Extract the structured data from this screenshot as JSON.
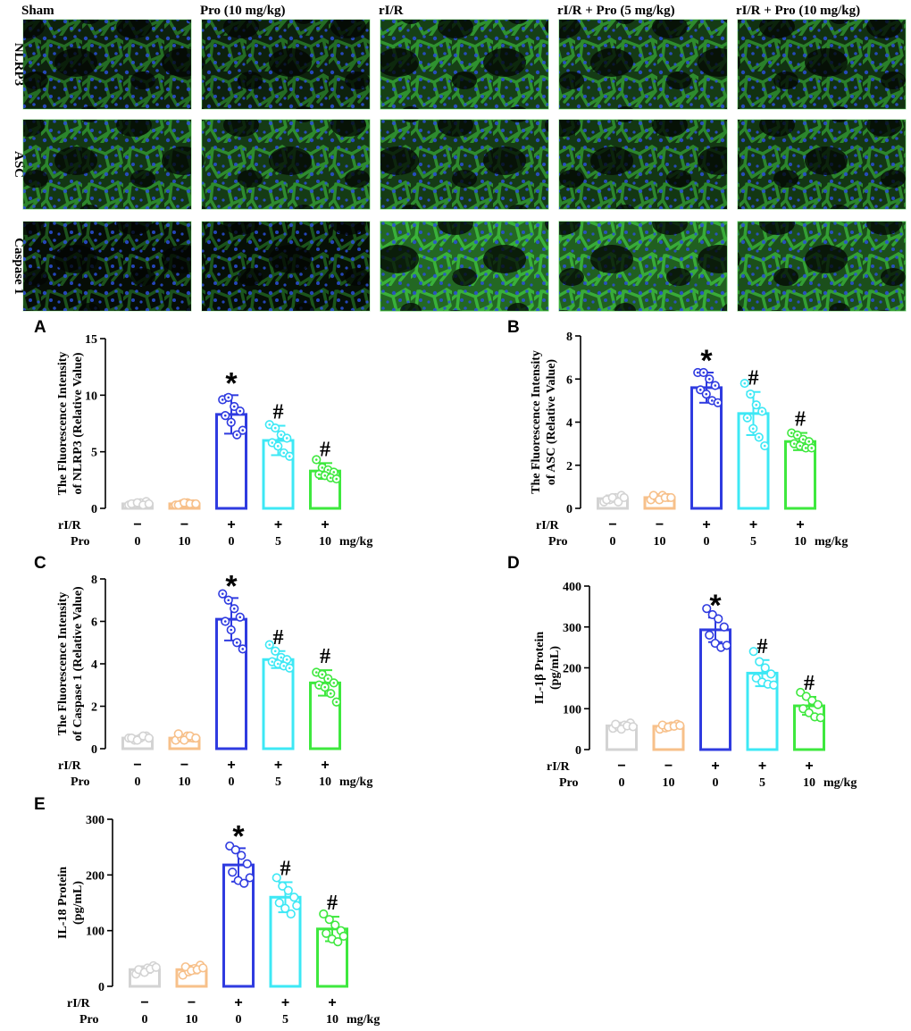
{
  "micrographs": {
    "columns": [
      "Sham",
      "Pro (10 mg/kg)",
      "rI/R",
      "rI/R + Pro (5 mg/kg)",
      "rI/R + Pro (10 mg/kg)"
    ],
    "rows": [
      "NLRP3",
      "ASC",
      "Caspase 1"
    ],
    "intensity": [
      [
        0.25,
        0.25,
        0.55,
        0.5,
        0.4
      ],
      [
        0.45,
        0.5,
        0.5,
        0.45,
        0.45
      ],
      [
        0.05,
        0.08,
        0.95,
        0.85,
        0.7
      ]
    ],
    "colors": {
      "membrane": "#3fc23f",
      "nucleus": "#2a4fd8",
      "background": "#050805"
    }
  },
  "groups": {
    "row_labels": [
      "rI/R",
      "Pro"
    ],
    "rIR": [
      "−",
      "−",
      "+",
      "+",
      "+"
    ],
    "pro": [
      "0",
      "10",
      "0",
      "5",
      "10"
    ],
    "unit": "mg/kg",
    "colors": [
      "#d3d3d3",
      "#f7c08a",
      "#2f3be0",
      "#3de8f5",
      "#3ee83e"
    ]
  },
  "chart_data": [
    {
      "type": "bar",
      "panel": "A",
      "ylabel": [
        "The Fluorescence Intensity",
        "of NLRP3 (Relative Value)"
      ],
      "ylim": [
        0,
        15
      ],
      "yticks": [
        0,
        5,
        10,
        15
      ],
      "values": [
        0.4,
        0.4,
        8.3,
        6.0,
        3.3
      ],
      "errors": [
        0.15,
        0.15,
        1.7,
        1.3,
        0.7
      ],
      "annotations": [
        "",
        "",
        "*",
        "#",
        "#"
      ],
      "points": [
        [
          0.3,
          0.4,
          0.5,
          0.6,
          0.4,
          0.5,
          0.3,
          0.4
        ],
        [
          0.3,
          0.4,
          0.5,
          0.4,
          0.3,
          0.5,
          0.4,
          0.4
        ],
        [
          9.6,
          9.8,
          9.0,
          8.6,
          8.2,
          7.6,
          6.5,
          6.9
        ],
        [
          7.4,
          7.1,
          6.5,
          6.2,
          5.8,
          5.5,
          4.9,
          4.6
        ],
        [
          4.3,
          3.6,
          3.4,
          3.2,
          3.0,
          2.9,
          2.7,
          2.6
        ]
      ]
    },
    {
      "type": "bar",
      "panel": "B",
      "ylabel": [
        "The Fluorescence Intensity",
        "of ASC (Relative Value)"
      ],
      "ylim": [
        0,
        8
      ],
      "yticks": [
        0,
        2,
        4,
        6,
        8
      ],
      "values": [
        0.45,
        0.5,
        5.6,
        4.4,
        3.1
      ],
      "errors": [
        0.15,
        0.12,
        0.7,
        1.0,
        0.4
      ],
      "annotations": [
        "",
        "",
        "*",
        "#",
        "#"
      ],
      "points": [
        [
          0.3,
          0.4,
          0.5,
          0.6,
          0.4,
          0.5,
          0.3,
          0.5
        ],
        [
          0.4,
          0.5,
          0.6,
          0.5,
          0.6,
          0.4,
          0.5,
          0.5
        ],
        [
          6.3,
          6.3,
          6.0,
          5.7,
          5.5,
          5.3,
          5.0,
          4.9
        ],
        [
          5.8,
          5.3,
          4.8,
          4.5,
          4.2,
          3.7,
          3.3,
          2.9
        ],
        [
          3.5,
          3.4,
          3.2,
          3.1,
          3.0,
          2.9,
          2.8,
          2.8
        ]
      ]
    },
    {
      "type": "bar",
      "panel": "C",
      "ylabel": [
        "The Fluorescence Intensity",
        "of Caspase 1 (Relative Value)"
      ],
      "ylim": [
        0,
        8
      ],
      "yticks": [
        0,
        2,
        4,
        6,
        8
      ],
      "values": [
        0.5,
        0.5,
        6.1,
        4.2,
        3.1
      ],
      "errors": [
        0.1,
        0.15,
        1.0,
        0.4,
        0.6
      ],
      "annotations": [
        "",
        "",
        "*",
        "#",
        "#"
      ],
      "points": [
        [
          0.5,
          0.4,
          0.5,
          0.6,
          0.5,
          0.4,
          0.6,
          0.5
        ],
        [
          0.4,
          0.5,
          0.6,
          0.5,
          0.7,
          0.4,
          0.6,
          0.5
        ],
        [
          7.3,
          7.0,
          6.6,
          6.2,
          6.0,
          5.6,
          5.0,
          4.7
        ],
        [
          4.9,
          4.6,
          4.3,
          4.2,
          4.1,
          4.0,
          3.9,
          3.8
        ],
        [
          3.6,
          3.5,
          3.3,
          3.1,
          3.0,
          2.9,
          2.6,
          2.2
        ]
      ]
    },
    {
      "type": "bar",
      "panel": "D",
      "ylabel": [
        "IL-1β Protein",
        "(pg/mL)"
      ],
      "ylim": [
        0,
        400
      ],
      "yticks": [
        0,
        100,
        200,
        300,
        400
      ],
      "values": [
        58,
        57,
        293,
        187,
        107
      ],
      "errors": [
        8,
        7,
        30,
        32,
        22
      ],
      "annotations": [
        "",
        "",
        "*",
        "#",
        "#"
      ],
      "points": [
        [
          52,
          55,
          60,
          65,
          62,
          50,
          58,
          56
        ],
        [
          50,
          53,
          58,
          62,
          60,
          55,
          57,
          59
        ],
        [
          345,
          330,
          320,
          300,
          280,
          260,
          250,
          255
        ],
        [
          240,
          215,
          200,
          185,
          175,
          165,
          160,
          158
        ],
        [
          140,
          130,
          120,
          110,
          100,
          90,
          80,
          78
        ]
      ]
    },
    {
      "type": "bar",
      "panel": "E",
      "ylabel": [
        "IL-18 Protein",
        "(pg/mL)"
      ],
      "ylim": [
        0,
        300
      ],
      "yticks": [
        0,
        100,
        200,
        300
      ],
      "values": [
        30,
        30,
        218,
        160,
        103
      ],
      "errors": [
        6,
        7,
        30,
        27,
        22
      ],
      "annotations": [
        "",
        "",
        "*",
        "#",
        "#"
      ],
      "points": [
        [
          22,
          28,
          33,
          37,
          30,
          25,
          31,
          34
        ],
        [
          20,
          26,
          32,
          38,
          35,
          28,
          30,
          33
        ],
        [
          252,
          245,
          235,
          220,
          205,
          190,
          185,
          195
        ],
        [
          195,
          180,
          172,
          160,
          150,
          140,
          130,
          145
        ],
        [
          130,
          120,
          110,
          100,
          95,
          85,
          80,
          90
        ]
      ]
    }
  ]
}
